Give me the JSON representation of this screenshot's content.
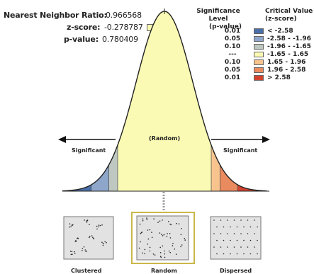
{
  "stats": {
    "nn_ratio_label": "Nearest Neighbor Ratio:",
    "nn_ratio_value": "0.966568",
    "z_score_label": "z-score:",
    "z_score_value": "-0.278787",
    "p_value_label": "p-value:",
    "p_value_value": "0.780409"
  },
  "legend": {
    "sig_header_line1": "Significance Level",
    "sig_header_line2": "(p-value)",
    "crit_header_line1": "Critical Value",
    "crit_header_line2": "(z-score)",
    "rows": [
      {
        "p": "0.01",
        "z": "< -2.58",
        "color": "#4a6fa8"
      },
      {
        "p": "0.05",
        "z": "-2.58 - -1.96",
        "color": "#8ea6c9"
      },
      {
        "p": "0.10",
        "z": "-1.96 - -1.65",
        "color": "#bfc8c0"
      },
      {
        "p": "---",
        "z": "-1.65 - 1.65",
        "color": "#fafab4"
      },
      {
        "p": "0.10",
        "z": "1.65 - 1.96",
        "color": "#f7c48e"
      },
      {
        "p": "0.05",
        "z": "1.96 - 2.58",
        "color": "#ea8a5f"
      },
      {
        "p": "0.01",
        "z": "> 2.58",
        "color": "#d2432f"
      }
    ]
  },
  "curve": {
    "left_label": "Significant",
    "center_label": "(Random)",
    "right_label": "Significant"
  },
  "patterns": {
    "clustered": "Clustered",
    "random": "Random",
    "dispersed": "Dispersed"
  }
}
